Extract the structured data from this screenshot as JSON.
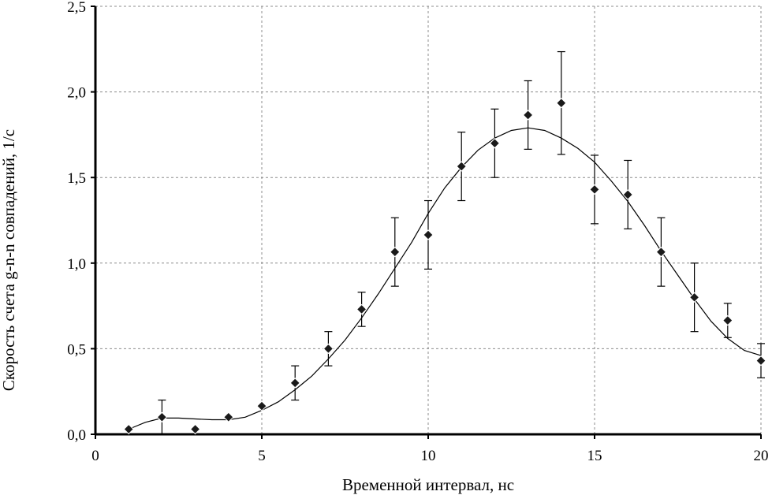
{
  "chart_data": {
    "type": "scatter",
    "xlabel": "Временной интервал, нс",
    "ylabel": "Скорость счета g-n-n совпадений, 1/с",
    "xlim": [
      0,
      20
    ],
    "ylim": [
      0,
      2.5
    ],
    "x_ticks": [
      0,
      5,
      10,
      15,
      20
    ],
    "x_tick_labels": [
      "0",
      "5",
      "10",
      "15",
      "20"
    ],
    "y_ticks": [
      0,
      0.5,
      1.0,
      1.5,
      2.0,
      2.5
    ],
    "y_tick_labels": [
      "0,0",
      "0,5",
      "1,0",
      "1,5",
      "2,0",
      "2,5"
    ],
    "grid": true,
    "grid_style": "dashed",
    "series": [
      {
        "marker": "diamond",
        "color": "#000000",
        "points": [
          {
            "x": 1,
            "y": 0.03,
            "err": 0
          },
          {
            "x": 2,
            "y": 0.1,
            "err": 0.1
          },
          {
            "x": 3,
            "y": 0.03,
            "err": 0
          },
          {
            "x": 4,
            "y": 0.1,
            "err": 0
          },
          {
            "x": 5,
            "y": 0.165,
            "err": 0
          },
          {
            "x": 6,
            "y": 0.3,
            "err": 0.1
          },
          {
            "x": 7,
            "y": 0.5,
            "err": 0.1
          },
          {
            "x": 8,
            "y": 0.73,
            "err": 0.1
          },
          {
            "x": 9,
            "y": 1.065,
            "err": 0.2
          },
          {
            "x": 10,
            "y": 1.165,
            "err": 0.2
          },
          {
            "x": 11,
            "y": 1.565,
            "err": 0.2
          },
          {
            "x": 12,
            "y": 1.7,
            "err": 0.2
          },
          {
            "x": 13,
            "y": 1.865,
            "err": 0.2
          },
          {
            "x": 14,
            "y": 1.935,
            "err": 0.3
          },
          {
            "x": 15,
            "y": 1.43,
            "err": 0.2
          },
          {
            "x": 16,
            "y": 1.4,
            "err": 0.2
          },
          {
            "x": 17,
            "y": 1.065,
            "err": 0.2
          },
          {
            "x": 18,
            "y": 0.8,
            "err": 0.2
          },
          {
            "x": 19,
            "y": 0.665,
            "err": 0.1
          },
          {
            "x": 20,
            "y": 0.43,
            "err": 0.1
          }
        ]
      }
    ],
    "fit_curve": {
      "color": "#000000",
      "points": [
        [
          1,
          0.03
        ],
        [
          1.5,
          0.07
        ],
        [
          2,
          0.095
        ],
        [
          2.5,
          0.095
        ],
        [
          3,
          0.09
        ],
        [
          3.5,
          0.085
        ],
        [
          4,
          0.085
        ],
        [
          4.5,
          0.1
        ],
        [
          5,
          0.14
        ],
        [
          5.5,
          0.19
        ],
        [
          6,
          0.26
        ],
        [
          6.5,
          0.34
        ],
        [
          7,
          0.44
        ],
        [
          7.5,
          0.55
        ],
        [
          8,
          0.68
        ],
        [
          8.5,
          0.82
        ],
        [
          9,
          0.97
        ],
        [
          9.5,
          1.12
        ],
        [
          10,
          1.29
        ],
        [
          10.5,
          1.44
        ],
        [
          11,
          1.56
        ],
        [
          11.5,
          1.66
        ],
        [
          12,
          1.73
        ],
        [
          12.5,
          1.775
        ],
        [
          13,
          1.79
        ],
        [
          13.5,
          1.775
        ],
        [
          14,
          1.73
        ],
        [
          14.5,
          1.67
        ],
        [
          15,
          1.59
        ],
        [
          15.5,
          1.48
        ],
        [
          16,
          1.36
        ],
        [
          16.5,
          1.22
        ],
        [
          17,
          1.07
        ],
        [
          17.5,
          0.93
        ],
        [
          18,
          0.79
        ],
        [
          18.5,
          0.66
        ],
        [
          19,
          0.56
        ],
        [
          19.5,
          0.49
        ],
        [
          20,
          0.46
        ]
      ]
    }
  }
}
